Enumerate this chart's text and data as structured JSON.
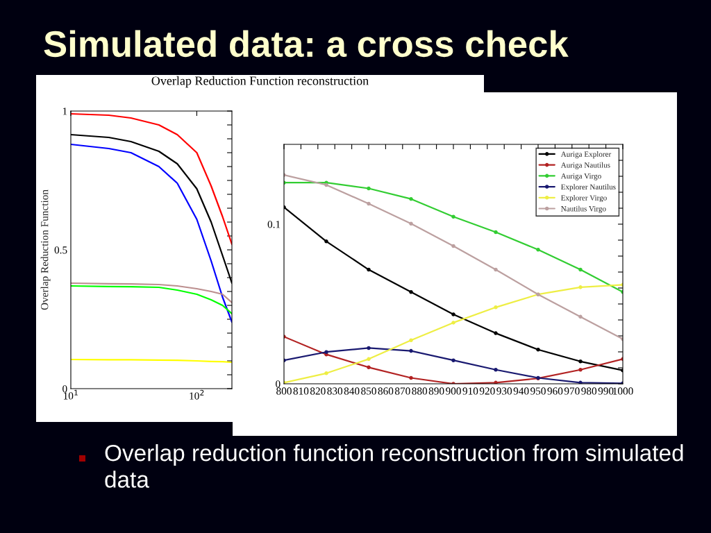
{
  "chart_data": [
    {
      "type": "line",
      "title": "Simulated data: a cross check",
      "subtitle": "Overlap Reduction Function reconstruction",
      "ylabel": "Overlap Reduction Function",
      "x": [
        10,
        20,
        30,
        50,
        70,
        100,
        130,
        160,
        190
      ],
      "log": "x",
      "xlim": [
        10,
        190
      ],
      "xticks": [
        {
          "value": 10,
          "label": "10$^{1}$"
        },
        {
          "value": 100,
          "label": "10$^{2}$"
        }
      ],
      "ylim": [
        0,
        1
      ],
      "yticks": [
        0,
        {
          "value": 0.05,
          "label": null
        },
        {
          "value": 0.1,
          "label": null
        },
        {
          "value": 0.15,
          "label": null
        },
        {
          "value": 0.2,
          "label": null
        },
        {
          "value": 0.25,
          "label": null
        },
        {
          "value": 0.3,
          "label": null
        },
        {
          "value": 0.35,
          "label": null
        },
        {
          "value": 0.4,
          "label": null
        },
        {
          "value": 0.45,
          "label": null
        },
        0.5,
        {
          "value": 0.55,
          "label": null
        },
        {
          "value": 0.6,
          "label": null
        },
        {
          "value": 0.65,
          "label": null
        },
        {
          "value": 0.7,
          "label": null
        },
        {
          "value": 0.75,
          "label": null
        },
        {
          "value": 0.8,
          "label": null
        },
        {
          "value": 0.85,
          "label": null
        },
        {
          "value": 0.9,
          "label": null
        },
        {
          "value": 0.95,
          "label": null
        },
        1
      ],
      "grid": false,
      "legend": false,
      "series": [
        {
          "color": "#ff0000",
          "values": [
            0.99,
            0.985,
            0.975,
            0.95,
            0.915,
            0.85,
            0.73,
            0.62,
            0.52
          ]
        },
        {
          "color": "#000000",
          "values": [
            0.915,
            0.905,
            0.89,
            0.855,
            0.81,
            0.72,
            0.6,
            0.48,
            0.38
          ]
        },
        {
          "color": "#0000ff",
          "values": [
            0.88,
            0.865,
            0.85,
            0.8,
            0.74,
            0.61,
            0.46,
            0.33,
            0.24
          ]
        },
        {
          "color": "#bc8f8f",
          "values": [
            0.38,
            0.378,
            0.377,
            0.375,
            0.37,
            0.36,
            0.35,
            0.34,
            0.31
          ]
        },
        {
          "color": "#00ff00",
          "values": [
            0.37,
            0.368,
            0.367,
            0.365,
            0.355,
            0.34,
            0.32,
            0.3,
            0.27
          ]
        },
        {
          "color": "#ffff00",
          "values": [
            0.105,
            0.104,
            0.104,
            0.103,
            0.102,
            0.1,
            0.098,
            0.097,
            0.095
          ]
        }
      ]
    },
    {
      "type": "line",
      "x": [
        800,
        825,
        850,
        875,
        900,
        925,
        950,
        975,
        1000
      ],
      "xlim": [
        800,
        1000
      ],
      "xticks": [
        800,
        810,
        820,
        830,
        840,
        850,
        860,
        870,
        880,
        890,
        900,
        910,
        920,
        930,
        940,
        950,
        960,
        970,
        980,
        990,
        1000
      ],
      "ylim": [
        0,
        0.15
      ],
      "yticks": [
        0,
        {
          "value": 0.01,
          "label": null
        },
        {
          "value": 0.02,
          "label": null
        },
        {
          "value": 0.03,
          "label": null
        },
        {
          "value": 0.04,
          "label": null
        },
        {
          "value": 0.05,
          "label": null
        },
        {
          "value": 0.06,
          "label": null
        },
        {
          "value": 0.07,
          "label": null
        },
        {
          "value": 0.08,
          "label": null
        },
        {
          "value": 0.09,
          "label": null
        },
        0.1,
        {
          "value": 0.11,
          "label": null
        },
        {
          "value": 0.12,
          "label": null
        },
        {
          "value": 0.13,
          "label": null
        },
        {
          "value": 0.14,
          "label": null
        }
      ],
      "grid": false,
      "legend": "top right",
      "marker": "circle",
      "annotations": [
        "Overlap reduction function reconstruction from simulated data"
      ],
      "series": [
        {
          "name": "Auriga Explorer",
          "color": "#000000",
          "values": [
            0.1106,
            0.0892,
            0.0715,
            0.0575,
            0.0435,
            0.0317,
            0.0214,
            0.014,
            0.0084
          ]
        },
        {
          "name": "Auriga Nautilus",
          "color": "#b22222",
          "values": [
            0.0295,
            0.0184,
            0.0103,
            0.0037,
            0.0,
            0.0007,
            0.0034,
            0.0088,
            0.0155
          ]
        },
        {
          "name": "Auriga Virgo",
          "color": "#32cd32",
          "values": [
            0.126,
            0.126,
            0.1224,
            0.1158,
            0.1047,
            0.095,
            0.084,
            0.0715,
            0.0575
          ]
        },
        {
          "name": "Explorer Nautilus",
          "color": "#191970",
          "values": [
            0.0147,
            0.0199,
            0.0224,
            0.0206,
            0.0147,
            0.0088,
            0.0037,
            0.0007,
            0.0003
          ]
        },
        {
          "name": "Explorer Virgo",
          "color": "#eeee44",
          "values": [
            0.0007,
            0.0066,
            0.0155,
            0.0273,
            0.0383,
            0.0479,
            0.056,
            0.0605,
            0.062
          ]
        },
        {
          "name": "Nautilus Virgo",
          "color": "#bca0a0",
          "values": [
            0.1308,
            0.1246,
            0.1128,
            0.1003,
            0.0863,
            0.0715,
            0.056,
            0.042,
            0.028
          ]
        }
      ]
    }
  ]
}
